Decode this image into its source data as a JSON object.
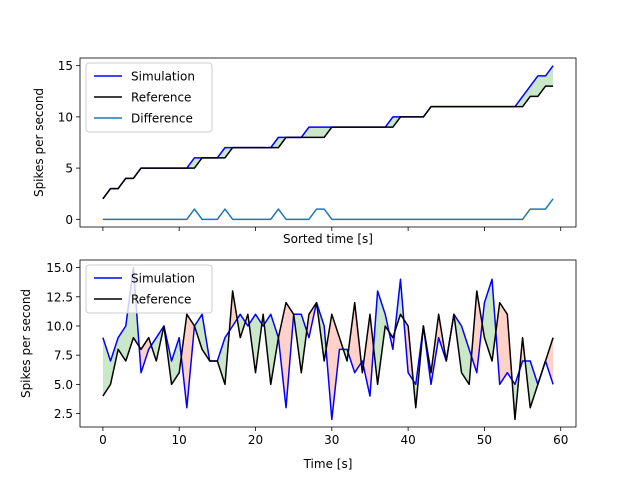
{
  "chart_data": [
    {
      "type": "line",
      "xlabel": "Sorted time [s]",
      "ylabel": "Spikes per second",
      "xlim": [
        -3,
        62
      ],
      "ylim": [
        -0.75,
        15.75
      ],
      "x_tick_values": [
        0,
        10,
        20,
        30,
        40,
        50,
        60
      ],
      "x_tick_labels_shown": false,
      "y_ticks": [
        0,
        5,
        10,
        15
      ],
      "legend": {
        "position": "top-left",
        "entries": [
          "Simulation",
          "Reference",
          "Difference"
        ]
      },
      "fill_between": "Simulation vs Reference (green where Simulation > Reference, red where Reference > Simulation)",
      "series": [
        {
          "name": "Simulation",
          "color": "#0000ff",
          "values": [
            2,
            3,
            3,
            4,
            4,
            5,
            5,
            5,
            5,
            5,
            5,
            5,
            6,
            6,
            6,
            6,
            7,
            7,
            7,
            7,
            7,
            7,
            7,
            8,
            8,
            8,
            8,
            9,
            9,
            9,
            9,
            9,
            9,
            9,
            9,
            9,
            9,
            9,
            10,
            10,
            10,
            10,
            10,
            11,
            11,
            11,
            11,
            11,
            11,
            11,
            11,
            11,
            11,
            11,
            11,
            12,
            13,
            14,
            14,
            15
          ]
        },
        {
          "name": "Reference",
          "color": "#000000",
          "values": [
            2,
            3,
            3,
            4,
            4,
            5,
            5,
            5,
            5,
            5,
            5,
            5,
            5,
            6,
            6,
            6,
            6,
            7,
            7,
            7,
            7,
            7,
            7,
            7,
            8,
            8,
            8,
            8,
            8,
            8,
            9,
            9,
            9,
            9,
            9,
            9,
            9,
            9,
            9,
            10,
            10,
            10,
            10,
            11,
            11,
            11,
            11,
            11,
            11,
            11,
            11,
            11,
            11,
            11,
            11,
            11,
            12,
            12,
            13,
            13
          ]
        },
        {
          "name": "Difference",
          "color": "#1f77b4",
          "values": [
            0,
            0,
            0,
            0,
            0,
            0,
            0,
            0,
            0,
            0,
            0,
            0,
            1,
            0,
            0,
            0,
            1,
            0,
            0,
            0,
            0,
            0,
            0,
            1,
            0,
            0,
            0,
            0,
            1,
            1,
            0,
            0,
            0,
            0,
            0,
            0,
            0,
            0,
            0,
            0,
            0,
            0,
            0,
            0,
            0,
            0,
            0,
            0,
            0,
            0,
            0,
            0,
            0,
            0,
            0,
            0,
            1,
            1,
            1,
            2
          ]
        }
      ]
    },
    {
      "type": "line",
      "xlabel": "Time [s]",
      "ylabel": "Spikes per second",
      "xlim": [
        -3,
        62
      ],
      "ylim": [
        1.35,
        15.65
      ],
      "x_ticks": [
        0,
        10,
        20,
        30,
        40,
        50,
        60
      ],
      "y_ticks": [
        2.5,
        5.0,
        7.5,
        10.0,
        12.5,
        15.0
      ],
      "legend": {
        "position": "top-left",
        "entries": [
          "Simulation",
          "Reference"
        ]
      },
      "fill_between": "Simulation vs Reference (green where Simulation > Reference, red where Reference > Simulation)",
      "series": [
        {
          "name": "Simulation",
          "color": "#0000ff",
          "values": [
            9,
            7,
            9,
            10,
            15,
            6,
            8,
            9,
            10,
            7,
            9,
            3,
            10,
            11,
            7,
            7,
            9,
            10,
            11,
            10,
            11,
            10,
            11,
            9,
            3,
            11,
            11,
            9,
            12,
            10,
            2,
            8,
            8,
            6,
            7,
            4,
            13,
            11,
            8,
            14,
            6,
            5,
            10,
            5,
            9,
            7,
            11,
            10,
            8,
            6,
            12,
            14,
            5,
            6,
            5,
            7,
            7,
            5,
            7,
            5
          ]
        },
        {
          "name": "Reference",
          "color": "#000000",
          "values": [
            4,
            5,
            8,
            7,
            9,
            8,
            9,
            7,
            10,
            5,
            6,
            11,
            10,
            8,
            7,
            7,
            5,
            13,
            9,
            11,
            6,
            11,
            5,
            9,
            12,
            11,
            6,
            11,
            12,
            7,
            11,
            9,
            7,
            12,
            6,
            11,
            5,
            10,
            9,
            11,
            10,
            3,
            10,
            6,
            11,
            7,
            11,
            6,
            5,
            13,
            9,
            7,
            12,
            11,
            2,
            9,
            3,
            5,
            7,
            9
          ]
        }
      ]
    }
  ],
  "colors": {
    "fill_positive": "#2ca02c",
    "fill_negative": "#ff5b3b",
    "axis": "#000000",
    "background": "#ffffff"
  }
}
